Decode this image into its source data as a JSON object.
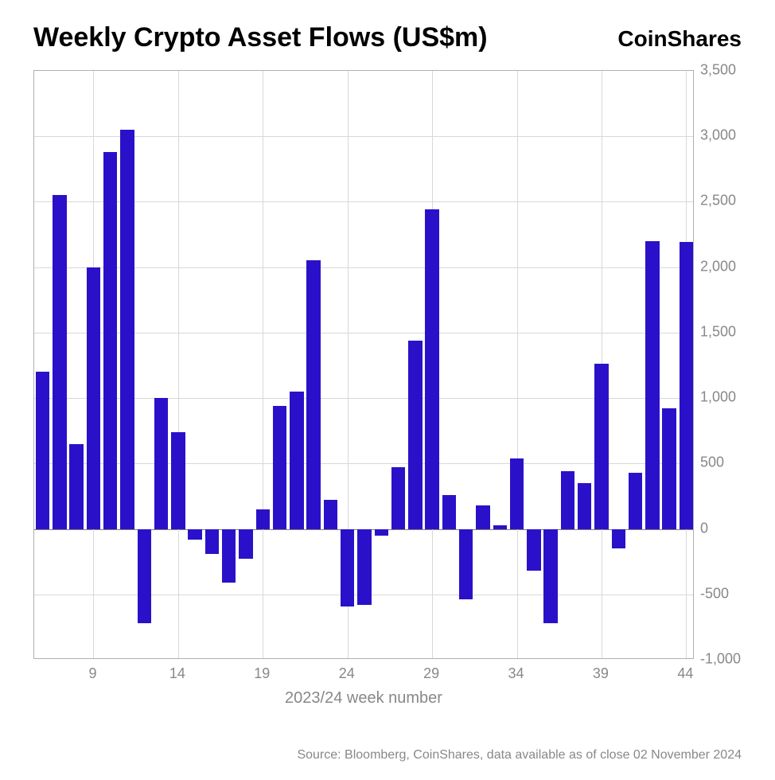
{
  "header": {
    "title": "Weekly Crypto Asset Flows (US$m)",
    "brand": "CoinShares"
  },
  "chart": {
    "type": "bar",
    "x_start": 6,
    "x_end": 44,
    "values": [
      1200,
      2550,
      650,
      2000,
      2880,
      3050,
      -720,
      1000,
      740,
      -80,
      -190,
      -410,
      -230,
      150,
      940,
      1050,
      2050,
      220,
      -590,
      -580,
      -50,
      470,
      1440,
      2440,
      260,
      -540,
      180,
      30,
      540,
      -320,
      -720,
      440,
      350,
      1260,
      -150,
      430,
      2200,
      920,
      2190
    ],
    "bar_color": "#2a11c9",
    "ylim": [
      -1000,
      3500
    ],
    "ytick_step": 500,
    "ytick_labels": [
      "-1,000",
      "-500",
      "0",
      "500",
      "1,000",
      "1,500",
      "2,000",
      "2,500",
      "3,000",
      "3,500"
    ],
    "xticks": [
      9,
      14,
      19,
      24,
      29,
      34,
      39,
      44
    ],
    "xlabel": "2023/24 week number",
    "grid_color": "#d8d8d8",
    "border_color": "#b0b0b0",
    "bar_gap_ratio": 0.18,
    "title_fontsize": 34,
    "tick_fontsize": 18,
    "tick_color": "#888888",
    "background_color": "#ffffff"
  },
  "footer": {
    "source": "Source: Bloomberg, CoinShares, data available as of close 02 November 2024"
  }
}
